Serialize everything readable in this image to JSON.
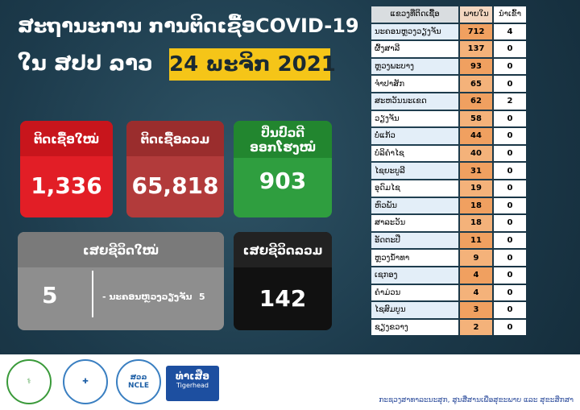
{
  "header": {
    "title": "ສະຖານະການ ການຕິດເຊື້ອCOVID-19",
    "location": "ໃນ ສປປ ລາວ",
    "date": "24 ພະຈິກ 2021"
  },
  "cards": [
    {
      "label": "ຕິດເຊື້ອໃໝ່",
      "value": "1,336"
    },
    {
      "label": "ຕິດເຊື້ອລວມ",
      "value": "65,818"
    },
    {
      "label": [
        "ປິ່ນປົວດີ",
        "ອອກໂຮງໝໍ"
      ],
      "value": "903"
    },
    {
      "label": "ເສຍຊີວິດໃໝ່",
      "value": "5",
      "detail": {
        "place": "- ນະຄອນຫຼວງວຽງຈັນ",
        "count": "5"
      }
    },
    {
      "label": "ເສຍຊີວິດລວມ",
      "value": "142"
    }
  ],
  "table": {
    "columns": [
      "ແຂວງທີ່ຕິດເຊື້ອ",
      "ພາຍໃນ",
      "ນຳເຂົ້າ"
    ],
    "rows": [
      [
        "ນະຄອນຫຼວງວຽງຈັນ",
        "712",
        "4"
      ],
      [
        "ຜົ້ງສາລີ",
        "137",
        "0"
      ],
      [
        "ຫຼວງພະບາງ",
        "93",
        "0"
      ],
      [
        "ຈຳປາສັກ",
        "65",
        "0"
      ],
      [
        "ສະຫວັນນະເຂດ",
        "62",
        "2"
      ],
      [
        "ວຽງຈັນ",
        "58",
        "0"
      ],
      [
        "ບໍ່ແກ້ວ",
        "44",
        "0"
      ],
      [
        "ບໍລິຄຳໄຊ",
        "40",
        "0"
      ],
      [
        "ໄຊຍະບູລີ",
        "31",
        "0"
      ],
      [
        "ອຸດົມໄຊ",
        "19",
        "0"
      ],
      [
        "ຫົວພັນ",
        "18",
        "0"
      ],
      [
        "ສາລະວັນ",
        "18",
        "0"
      ],
      [
        "ອັດຕະປື",
        "11",
        "0"
      ],
      [
        "ຫຼວງນ້ຳທາ",
        "9",
        "0"
      ],
      [
        "ເຊກອງ",
        "4",
        "0"
      ],
      [
        "ຄຳມ່ວນ",
        "4",
        "0"
      ],
      [
        "ໄຊສົມບູນ",
        "3",
        "0"
      ],
      [
        "ຊຽງຂວາງ",
        "2",
        "0"
      ]
    ]
  },
  "footer": {
    "logos": [
      "ສວລ",
      "NCLE",
      "ທ່າເສືອ",
      "Tigerhead"
    ],
    "credit": "ກະຊວງສາທາລະນະສຸກ, ສູນສື່ສານເພື່ອສຸຂະພາບ ແລະ ສຸຂະສຶກສາ"
  }
}
